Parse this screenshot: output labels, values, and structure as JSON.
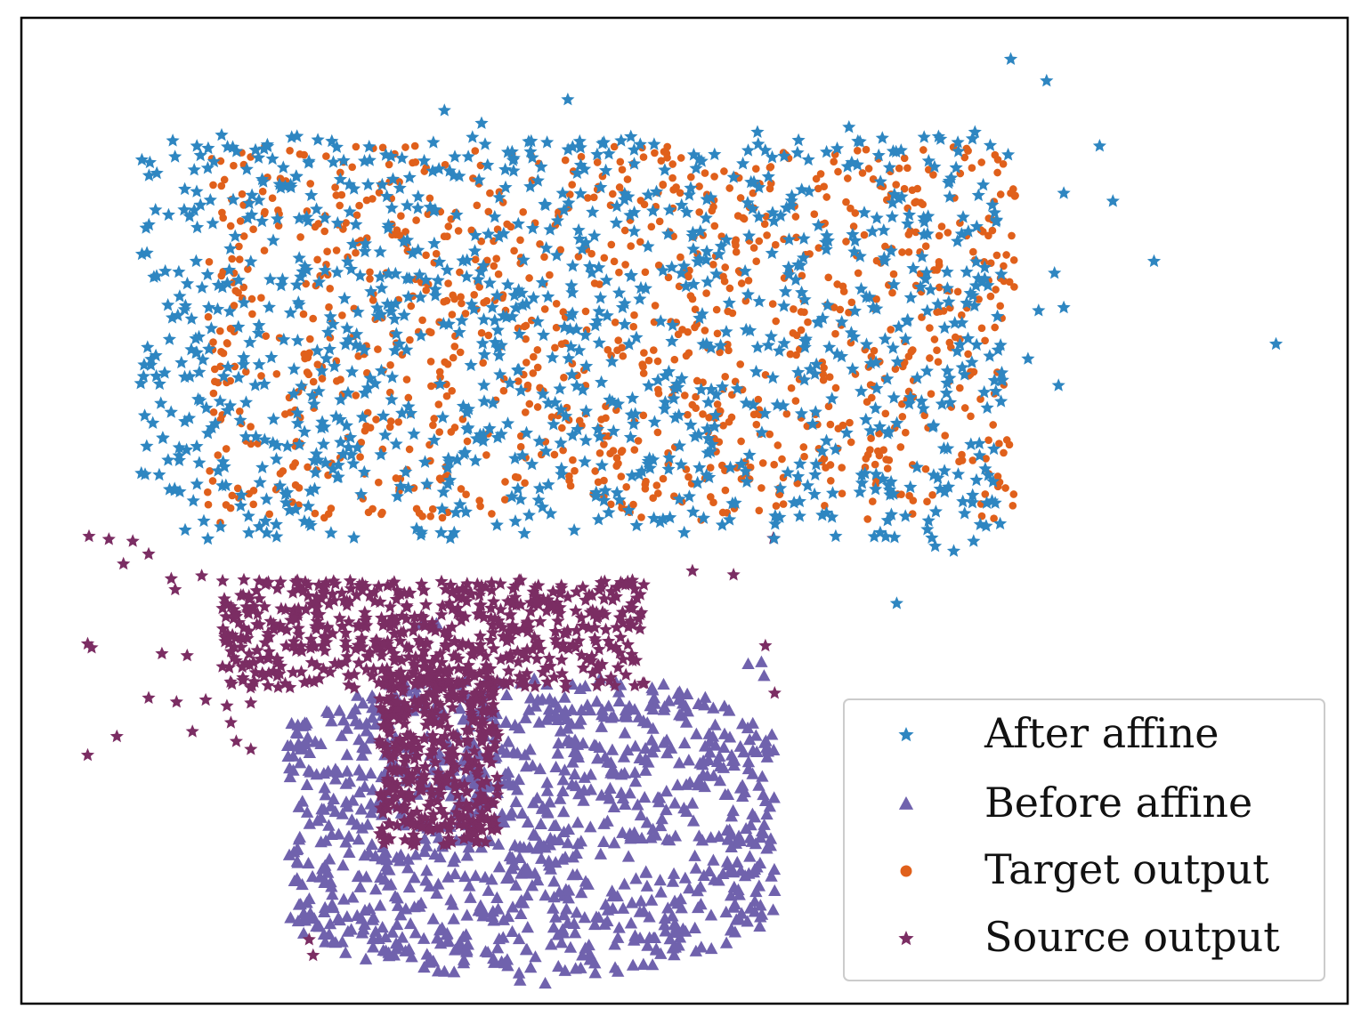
{
  "chart_data": {
    "type": "scatter",
    "title": "",
    "xlabel": "",
    "ylabel": "",
    "grid": false,
    "axis_ticks": false,
    "xlim": [
      0,
      100
    ],
    "ylim": [
      0,
      100
    ],
    "legend": {
      "placement": "bottom-right",
      "entries": [
        {
          "label": "After affine",
          "marker": "star",
          "color": "#2e86c1"
        },
        {
          "label": "Before affine",
          "marker": "triangle",
          "color": "#7062ad"
        },
        {
          "label": "Target output",
          "marker": "circle",
          "color": "#e0601b"
        },
        {
          "label": "Source output",
          "marker": "star",
          "color": "#7b2d63"
        }
      ]
    },
    "series": [
      {
        "name": "After affine",
        "marker": "star",
        "color": "#2e86c1",
        "cluster_region": {
          "x": [
            9,
            74
          ],
          "y": [
            47,
            88
          ]
        },
        "points": [
          [
            74.6,
            95.8
          ],
          [
            77.3,
            93.6
          ],
          [
            41.2,
            91.7
          ],
          [
            94.6,
            66.9
          ],
          [
            85.4,
            75.3
          ],
          [
            81.3,
            87.0
          ],
          [
            78.6,
            82.2
          ],
          [
            82.3,
            81.4
          ],
          [
            66.0,
            40.6
          ],
          [
            68.9,
            46.4
          ],
          [
            70.3,
            45.9
          ],
          [
            71.8,
            46.9
          ],
          [
            65.6,
            49.6
          ],
          [
            72.3,
            48.6
          ],
          [
            77.9,
            74.1
          ],
          [
            78.6,
            70.6
          ],
          [
            76.7,
            70.3
          ],
          [
            78.2,
            62.7
          ],
          [
            75.9,
            65.4
          ],
          [
            10.2,
            73.8
          ],
          [
            11.1,
            80.0
          ],
          [
            12.3,
            70.4
          ],
          [
            13.5,
            81.0
          ],
          [
            11.9,
            56.4
          ],
          [
            12.7,
            63.6
          ],
          [
            31.9,
            90.6
          ],
          [
            34.7,
            89.3
          ],
          [
            15.1,
            88.1
          ],
          [
            18.3,
            86.7
          ],
          [
            38.5,
            54.7
          ],
          [
            47.4,
            54.3
          ],
          [
            48.8,
            54.2
          ],
          [
            19.5,
            52.5
          ],
          [
            37.0,
            86.4
          ],
          [
            55.5,
            88.4
          ],
          [
            62.4,
            88.9
          ],
          [
            71.9,
            88.4
          ],
          [
            74.4,
            86.1
          ],
          [
            46.2,
            86.6
          ],
          [
            50.7,
            86.1
          ]
        ]
      },
      {
        "name": "Before affine",
        "marker": "triangle",
        "color": "#7062ad",
        "cluster_region": {
          "x": [
            20,
            57
          ],
          "y": [
            3,
            33
          ]
        },
        "points": [
          [
            37.6,
            2.3
          ],
          [
            39.5,
            2.0
          ],
          [
            31.9,
            3.2
          ],
          [
            26.5,
            6.5
          ],
          [
            25.7,
            7.1
          ],
          [
            24.2,
            6.2
          ],
          [
            33.5,
            5.5
          ],
          [
            53.5,
            10.9
          ],
          [
            51.2,
            11.8
          ],
          [
            52.9,
            13.1
          ],
          [
            22.7,
            13.6
          ],
          [
            21.2,
            28.1
          ],
          [
            20.9,
            26.3
          ],
          [
            55.8,
            34.6
          ],
          [
            56.0,
            33.2
          ],
          [
            54.8,
            34.4
          ],
          [
            31.3,
            38.5
          ],
          [
            30.2,
            38.4
          ],
          [
            20.5,
            23.6
          ],
          [
            38.4,
            3.6
          ]
        ]
      },
      {
        "name": "Target output",
        "marker": "circle",
        "color": "#e0601b",
        "cluster_region": {
          "x": [
            14,
            75
          ],
          "y": [
            49,
            87
          ]
        },
        "points": [
          [
            15.0,
            48.8
          ],
          [
            16.4,
            51.3
          ],
          [
            74.2,
            52.3
          ],
          [
            74.5,
            56.7
          ],
          [
            74.6,
            82.2
          ],
          [
            73.6,
            84.3
          ],
          [
            16.0,
            85.0
          ],
          [
            29.5,
            85.3
          ],
          [
            48.7,
            85.8
          ],
          [
            63.9,
            84.7
          ]
        ]
      },
      {
        "name": "Source output",
        "marker": "star",
        "color": "#7b2d63",
        "cluster_region": {
          "x": [
            15,
            47
          ],
          "y": [
            20,
            43
          ]
        },
        "points": [
          [
            5.1,
            47.4
          ],
          [
            6.6,
            47.1
          ],
          [
            8.4,
            46.9
          ],
          [
            9.6,
            45.6
          ],
          [
            7.7,
            44.6
          ],
          [
            11.3,
            43.1
          ],
          [
            13.6,
            43.4
          ],
          [
            11.6,
            42.0
          ],
          [
            5.0,
            36.5
          ],
          [
            5.3,
            36.1
          ],
          [
            10.6,
            35.5
          ],
          [
            12.5,
            35.3
          ],
          [
            9.6,
            31.0
          ],
          [
            11.7,
            30.6
          ],
          [
            13.9,
            30.8
          ],
          [
            15.5,
            30.2
          ],
          [
            17.3,
            30.5
          ],
          [
            7.2,
            27.1
          ],
          [
            12.9,
            27.6
          ],
          [
            15.8,
            28.5
          ],
          [
            5.0,
            25.2
          ],
          [
            16.2,
            26.6
          ],
          [
            17.3,
            25.8
          ],
          [
            21.7,
            6.5
          ],
          [
            22.0,
            4.9
          ],
          [
            56.7,
            47.2
          ],
          [
            50.6,
            43.9
          ],
          [
            53.7,
            43.5
          ],
          [
            56.1,
            36.3
          ],
          [
            56.8,
            31.5
          ]
        ]
      }
    ]
  }
}
